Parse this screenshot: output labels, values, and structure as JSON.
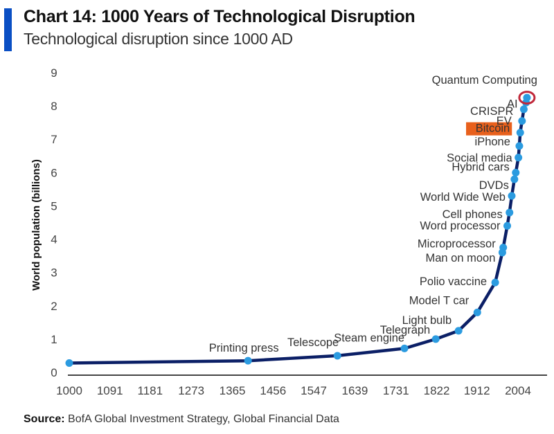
{
  "header": {
    "title": "Chart 14: 1000 Years of Technological Disruption",
    "subtitle": "Technological disruption since 1000 AD",
    "accent_color": "#0a4fc4"
  },
  "footer": {
    "source_label": "Source:",
    "source_text": " BofA Global Investment Strategy, Global Financial Data"
  },
  "chart_data": {
    "type": "line",
    "title": "Chart 14: 1000 Years of Technological Disruption",
    "subtitle": "Technological disruption since 1000 AD",
    "xlabel": "",
    "ylabel": "World population (billions)",
    "xlim": [
      1000,
      2040
    ],
    "ylim": [
      0,
      9
    ],
    "x_ticks": [
      1000,
      1091,
      1181,
      1273,
      1365,
      1456,
      1547,
      1639,
      1731,
      1822,
      1912,
      2004
    ],
    "y_ticks": [
      0,
      1,
      2,
      3,
      4,
      5,
      6,
      7,
      8,
      9
    ],
    "grid": false,
    "line_color": "#0b1f66",
    "marker_color": "#2b9be0",
    "highlight_color": "#e8601c",
    "circle_color": "#c0283a",
    "series": [
      {
        "name": "World population",
        "points": [
          {
            "year": 1000,
            "value": 0.28,
            "label": ""
          },
          {
            "year": 1400,
            "value": 0.35,
            "label": "Printing press"
          },
          {
            "year": 1600,
            "value": 0.5,
            "label": "Telescope"
          },
          {
            "year": 1750,
            "value": 0.72,
            "label": "Steam engine"
          },
          {
            "year": 1820,
            "value": 1.0,
            "label": "Telegraph"
          },
          {
            "year": 1871,
            "value": 1.25,
            "label": "Light bulb"
          },
          {
            "year": 1913,
            "value": 1.8,
            "label": "Model T car"
          },
          {
            "year": 1953,
            "value": 2.7,
            "label": "Polio vaccine"
          },
          {
            "year": 1969,
            "value": 3.6,
            "label": "Man on moon"
          },
          {
            "year": 1971,
            "value": 3.75,
            "label": "Microprocessor"
          },
          {
            "year": 1980,
            "value": 4.4,
            "label": "Word processor"
          },
          {
            "year": 1985,
            "value": 4.8,
            "label": "Cell phones"
          },
          {
            "year": 1990,
            "value": 5.3,
            "label": "World Wide Web"
          },
          {
            "year": 1996,
            "value": 5.8,
            "label": "DVDs"
          },
          {
            "year": 1999,
            "value": 6.0,
            "label": "Hybrid cars"
          },
          {
            "year": 2005,
            "value": 6.45,
            "label": "Social media"
          },
          {
            "year": 2007,
            "value": 6.8,
            "label": "iPhone"
          },
          {
            "year": 2009,
            "value": 7.2,
            "label": "Bitcoin",
            "highlight": true
          },
          {
            "year": 2013,
            "value": 7.55,
            "label": "EV"
          },
          {
            "year": 2017,
            "value": 7.9,
            "label": "CRISPR"
          },
          {
            "year": 2022,
            "value": 8.1,
            "label": "AI"
          },
          {
            "year": 2024,
            "value": 8.25,
            "label": "Quantum Computing",
            "circled": true
          }
        ]
      }
    ]
  }
}
